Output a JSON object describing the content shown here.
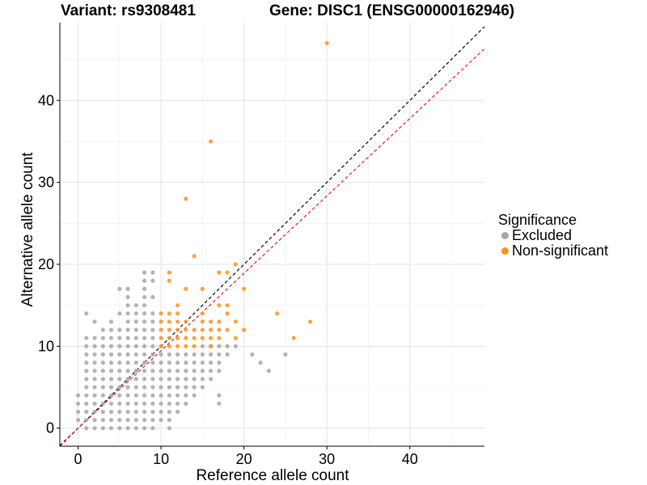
{
  "titles": {
    "variant": "Variant: rs9308481",
    "gene": "Gene: DISC1 (ENSG00000162946)"
  },
  "legend": {
    "title": "Significance",
    "items": [
      {
        "label": "Excluded",
        "color": "#a6a6a6"
      },
      {
        "label": "Non-significant",
        "color": "#f7941d"
      }
    ]
  },
  "chart_data": {
    "type": "scatter",
    "xlabel": "Reference allele count",
    "ylabel": "Alternative allele count",
    "xlim": [
      -2.2,
      49
    ],
    "ylim": [
      -2.2,
      49.5
    ],
    "xticks": [
      0,
      10,
      20,
      30,
      40
    ],
    "yticks": [
      0,
      10,
      20,
      30,
      40
    ],
    "grid": true,
    "legend_position": "right",
    "reference_lines": [
      {
        "style": "dashed",
        "color": "#000000",
        "slope": 1.0,
        "intercept": 0
      },
      {
        "style": "dashed",
        "color": "#e41a1c",
        "slope": 0.945,
        "intercept": 0
      }
    ],
    "series": [
      {
        "name": "Excluded",
        "color": "#a6a6a6",
        "points": [
          [
            0,
            1
          ],
          [
            0,
            2
          ],
          [
            0,
            3
          ],
          [
            0,
            4
          ],
          [
            1,
            0
          ],
          [
            1,
            1
          ],
          [
            1,
            2
          ],
          [
            1,
            3
          ],
          [
            1,
            4
          ],
          [
            1,
            5
          ],
          [
            1,
            6
          ],
          [
            1,
            7
          ],
          [
            1,
            8
          ],
          [
            1,
            9
          ],
          [
            1,
            10
          ],
          [
            1,
            11
          ],
          [
            1,
            14
          ],
          [
            2,
            0
          ],
          [
            2,
            1
          ],
          [
            2,
            2
          ],
          [
            2,
            3
          ],
          [
            2,
            4
          ],
          [
            2,
            5
          ],
          [
            2,
            6
          ],
          [
            2,
            7
          ],
          [
            2,
            8
          ],
          [
            2,
            9
          ],
          [
            2,
            10
          ],
          [
            2,
            11
          ],
          [
            2,
            13
          ],
          [
            3,
            0
          ],
          [
            3,
            1
          ],
          [
            3,
            2
          ],
          [
            3,
            3
          ],
          [
            3,
            4
          ],
          [
            3,
            5
          ],
          [
            3,
            6
          ],
          [
            3,
            7
          ],
          [
            3,
            8
          ],
          [
            3,
            9
          ],
          [
            3,
            10
          ],
          [
            3,
            11
          ],
          [
            3,
            12
          ],
          [
            4,
            0
          ],
          [
            4,
            1
          ],
          [
            4,
            2
          ],
          [
            4,
            3
          ],
          [
            4,
            4
          ],
          [
            4,
            5
          ],
          [
            4,
            6
          ],
          [
            4,
            7
          ],
          [
            4,
            8
          ],
          [
            4,
            9
          ],
          [
            4,
            10
          ],
          [
            4,
            11
          ],
          [
            4,
            12
          ],
          [
            4,
            13
          ],
          [
            5,
            0
          ],
          [
            5,
            1
          ],
          [
            5,
            2
          ],
          [
            5,
            3
          ],
          [
            5,
            4
          ],
          [
            5,
            5
          ],
          [
            5,
            6
          ],
          [
            5,
            7
          ],
          [
            5,
            8
          ],
          [
            5,
            9
          ],
          [
            5,
            10
          ],
          [
            5,
            11
          ],
          [
            5,
            12
          ],
          [
            5,
            14
          ],
          [
            5,
            17
          ],
          [
            6,
            0
          ],
          [
            6,
            1
          ],
          [
            6,
            2
          ],
          [
            6,
            3
          ],
          [
            6,
            4
          ],
          [
            6,
            5
          ],
          [
            6,
            6
          ],
          [
            6,
            7
          ],
          [
            6,
            8
          ],
          [
            6,
            9
          ],
          [
            6,
            10
          ],
          [
            6,
            11
          ],
          [
            6,
            12
          ],
          [
            6,
            13
          ],
          [
            6,
            14
          ],
          [
            6,
            15
          ],
          [
            6,
            16
          ],
          [
            6,
            17
          ],
          [
            7,
            0
          ],
          [
            7,
            1
          ],
          [
            7,
            2
          ],
          [
            7,
            3
          ],
          [
            7,
            4
          ],
          [
            7,
            5
          ],
          [
            7,
            6
          ],
          [
            7,
            7
          ],
          [
            7,
            8
          ],
          [
            7,
            9
          ],
          [
            7,
            10
          ],
          [
            7,
            11
          ],
          [
            7,
            12
          ],
          [
            7,
            13
          ],
          [
            7,
            14
          ],
          [
            7,
            15
          ],
          [
            8,
            0
          ],
          [
            8,
            1
          ],
          [
            8,
            2
          ],
          [
            8,
            3
          ],
          [
            8,
            4
          ],
          [
            8,
            5
          ],
          [
            8,
            6
          ],
          [
            8,
            7
          ],
          [
            8,
            8
          ],
          [
            8,
            9
          ],
          [
            8,
            10
          ],
          [
            8,
            11
          ],
          [
            8,
            12
          ],
          [
            8,
            13
          ],
          [
            8,
            14
          ],
          [
            8,
            15
          ],
          [
            8,
            16
          ],
          [
            8,
            17
          ],
          [
            8,
            18
          ],
          [
            8,
            19
          ],
          [
            9,
            0
          ],
          [
            9,
            1
          ],
          [
            9,
            2
          ],
          [
            9,
            3
          ],
          [
            9,
            4
          ],
          [
            9,
            5
          ],
          [
            9,
            6
          ],
          [
            9,
            7
          ],
          [
            9,
            8
          ],
          [
            9,
            9
          ],
          [
            9,
            10
          ],
          [
            9,
            11
          ],
          [
            9,
            12
          ],
          [
            9,
            13
          ],
          [
            9,
            14
          ],
          [
            9,
            16
          ],
          [
            9,
            18
          ],
          [
            9,
            19
          ],
          [
            10,
            1
          ],
          [
            10,
            2
          ],
          [
            10,
            3
          ],
          [
            10,
            4
          ],
          [
            10,
            5
          ],
          [
            10,
            6
          ],
          [
            10,
            7
          ],
          [
            10,
            8
          ],
          [
            10,
            9
          ],
          [
            11,
            0
          ],
          [
            11,
            1
          ],
          [
            11,
            2
          ],
          [
            11,
            3
          ],
          [
            11,
            4
          ],
          [
            11,
            5
          ],
          [
            11,
            6
          ],
          [
            11,
            7
          ],
          [
            11,
            8
          ],
          [
            11,
            9
          ],
          [
            12,
            2
          ],
          [
            12,
            3
          ],
          [
            12,
            4
          ],
          [
            12,
            5
          ],
          [
            12,
            6
          ],
          [
            12,
            7
          ],
          [
            12,
            8
          ],
          [
            12,
            9
          ],
          [
            13,
            3
          ],
          [
            13,
            4
          ],
          [
            13,
            5
          ],
          [
            13,
            6
          ],
          [
            13,
            7
          ],
          [
            13,
            8
          ],
          [
            13,
            9
          ],
          [
            14,
            4
          ],
          [
            14,
            5
          ],
          [
            14,
            6
          ],
          [
            14,
            7
          ],
          [
            14,
            8
          ],
          [
            14,
            9
          ],
          [
            15,
            5
          ],
          [
            15,
            6
          ],
          [
            15,
            7
          ],
          [
            15,
            8
          ],
          [
            15,
            9
          ],
          [
            15,
            10
          ],
          [
            16,
            6
          ],
          [
            16,
            7
          ],
          [
            16,
            8
          ],
          [
            16,
            9
          ],
          [
            16,
            10
          ],
          [
            17,
            3
          ],
          [
            17,
            4
          ],
          [
            17,
            7
          ],
          [
            17,
            8
          ],
          [
            17,
            9
          ],
          [
            17,
            10
          ],
          [
            18,
            9
          ],
          [
            18,
            10
          ],
          [
            19,
            10
          ],
          [
            21,
            9
          ],
          [
            22,
            8
          ],
          [
            23,
            7
          ],
          [
            25,
            9
          ]
        ]
      },
      {
        "name": "Non-significant",
        "color": "#f7941d",
        "points": [
          [
            10,
            10
          ],
          [
            10,
            11
          ],
          [
            10,
            12
          ],
          [
            10,
            13
          ],
          [
            10,
            14
          ],
          [
            11,
            10
          ],
          [
            11,
            11
          ],
          [
            11,
            12
          ],
          [
            11,
            13
          ],
          [
            11,
            14
          ],
          [
            11,
            18
          ],
          [
            11,
            19
          ],
          [
            12,
            10
          ],
          [
            12,
            11
          ],
          [
            12,
            12
          ],
          [
            12,
            13
          ],
          [
            12,
            14
          ],
          [
            12,
            15
          ],
          [
            13,
            10
          ],
          [
            13,
            11
          ],
          [
            13,
            12
          ],
          [
            13,
            13
          ],
          [
            13,
            17
          ],
          [
            13,
            28
          ],
          [
            14,
            10
          ],
          [
            14,
            11
          ],
          [
            14,
            12
          ],
          [
            14,
            21
          ],
          [
            15,
            11
          ],
          [
            15,
            12
          ],
          [
            15,
            13
          ],
          [
            15,
            14
          ],
          [
            15,
            17
          ],
          [
            16,
            10
          ],
          [
            16,
            11
          ],
          [
            16,
            12
          ],
          [
            16,
            13
          ],
          [
            16,
            35
          ],
          [
            17,
            11
          ],
          [
            17,
            12
          ],
          [
            17,
            13
          ],
          [
            17,
            15
          ],
          [
            17,
            19
          ],
          [
            18,
            12
          ],
          [
            18,
            14
          ],
          [
            18,
            15
          ],
          [
            18,
            19
          ],
          [
            19,
            11
          ],
          [
            19,
            13
          ],
          [
            19,
            20
          ],
          [
            20,
            12
          ],
          [
            20,
            17
          ],
          [
            24,
            14
          ],
          [
            26,
            11
          ],
          [
            28,
            13
          ],
          [
            30,
            47
          ]
        ]
      }
    ]
  }
}
